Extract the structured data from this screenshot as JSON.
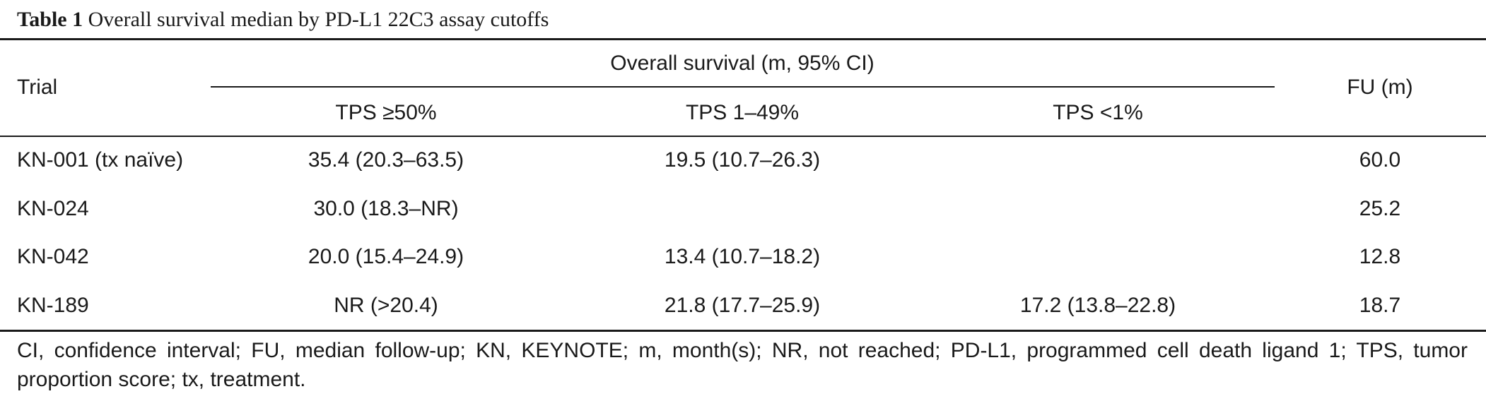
{
  "caption": {
    "label": "Table 1",
    "text": "Overall survival median by PD-L1 22C3 assay cutoffs"
  },
  "headers": {
    "trial": "Trial",
    "overall_survival": "Overall survival (m, 95% CI)",
    "tps_high": "TPS ≥50%",
    "tps_mid": "TPS 1–49%",
    "tps_low": "TPS <1%",
    "fu": "FU (m)"
  },
  "rows": [
    {
      "trial": "KN-001 (tx naïve)",
      "tps_high": "35.4 (20.3–63.5)",
      "tps_mid": "19.5 (10.7–26.3)",
      "tps_low": "",
      "fu": "60.0"
    },
    {
      "trial": "KN-024",
      "tps_high": "30.0 (18.3–NR)",
      "tps_mid": "",
      "tps_low": "",
      "fu": "25.2"
    },
    {
      "trial": "KN-042",
      "tps_high": "20.0 (15.4–24.9)",
      "tps_mid": "13.4 (10.7–18.2)",
      "tps_low": "",
      "fu": "12.8"
    },
    {
      "trial": "KN-189",
      "tps_high": "NR (>20.4)",
      "tps_mid": "21.8 (17.7–25.9)",
      "tps_low": "17.2 (13.8–22.8)",
      "fu": "18.7"
    }
  ],
  "footnote": "CI, confidence interval; FU, median follow-up; KN, KEYNOTE; m, month(s); NR, not reached; PD-L1, programmed cell death ligand 1; TPS, tumor proportion score; tx, treatment."
}
